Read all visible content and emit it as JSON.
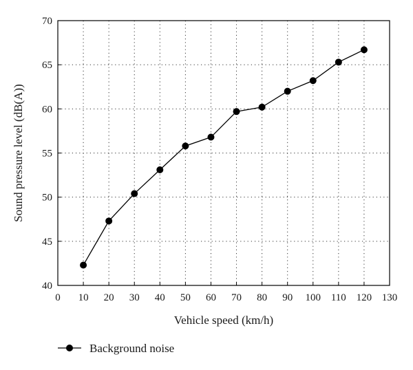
{
  "chart_data": {
    "type": "line",
    "xlabel": "Vehicle speed (km/h)",
    "ylabel": "Sound pressure level (dB(A))",
    "xlim": [
      0,
      130
    ],
    "ylim": [
      40,
      70
    ],
    "xticks": [
      0,
      10,
      20,
      30,
      40,
      50,
      60,
      70,
      80,
      90,
      100,
      110,
      120,
      130
    ],
    "yticks": [
      40,
      45,
      50,
      55,
      60,
      65,
      70
    ],
    "grid": true,
    "legend_position": "bottom-left, below plot",
    "series": [
      {
        "name": "Background noise",
        "color": "#000000",
        "marker": "circle",
        "x": [
          10,
          20,
          30,
          40,
          50,
          60,
          70,
          80,
          90,
          100,
          110,
          120
        ],
        "y": [
          42.3,
          47.3,
          50.4,
          53.1,
          55.8,
          56.8,
          59.7,
          60.2,
          62.0,
          63.2,
          65.3,
          66.7
        ]
      }
    ]
  }
}
